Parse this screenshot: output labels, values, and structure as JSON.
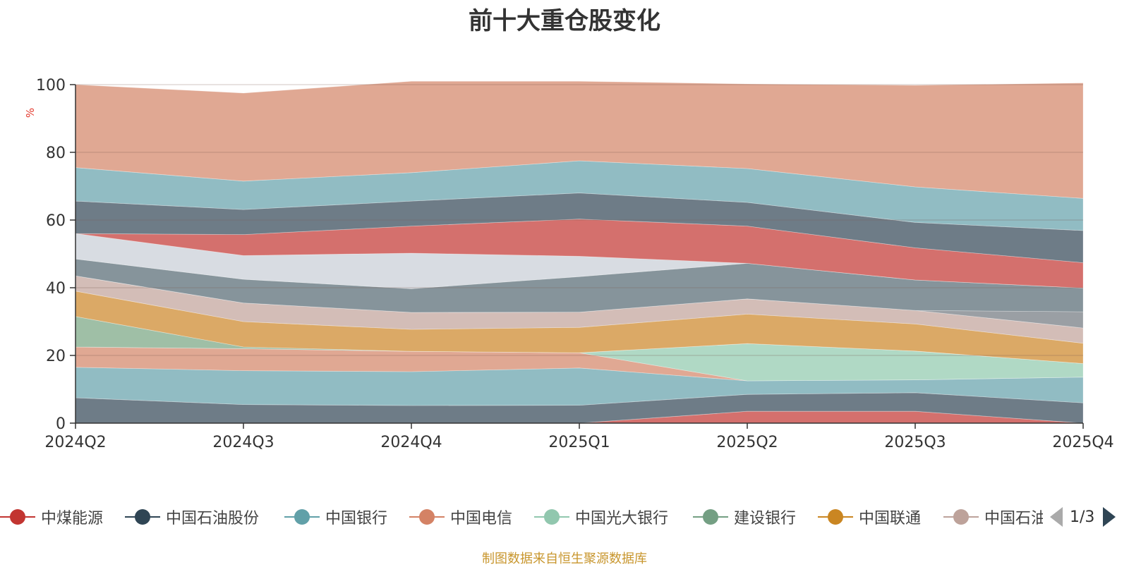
{
  "chart_data": {
    "type": "area",
    "title": "前十大重仓股变化",
    "ylabel": "%",
    "ylim": [
      0,
      100
    ],
    "yticks": [
      0,
      20,
      40,
      60,
      80,
      100
    ],
    "stacked": true,
    "grid": true,
    "legend_position": "bottom",
    "categories": [
      "2024Q2",
      "2024Q3",
      "2024Q4",
      "2025Q1",
      "2025Q2",
      "2025Q3",
      "2025Q4"
    ],
    "layers": [
      {
        "color": "#d4706d",
        "values": [
          0,
          0,
          0,
          0,
          3.5,
          3.5,
          0
        ]
      },
      {
        "color": "#6e7c87",
        "values": [
          7.5,
          5.5,
          5.2,
          5.3,
          5,
          5.5,
          6
        ]
      },
      {
        "color": "#91bcc3",
        "values": [
          9,
          10,
          10,
          11,
          4,
          3.8,
          7.6
        ]
      },
      {
        "color": "#e0a893",
        "values": [
          6,
          6.5,
          6,
          4.5,
          0,
          0,
          0
        ]
      },
      {
        "color": "#b0d9c5",
        "values": [
          0,
          0,
          0,
          0,
          11,
          8.5,
          4
        ]
      },
      {
        "color": "#9fbfa6",
        "values": [
          9,
          0.5,
          0,
          0,
          0,
          0,
          0
        ]
      },
      {
        "color": "#dba966",
        "values": [
          7.5,
          7.5,
          6.5,
          7.5,
          8.7,
          8,
          6
        ]
      },
      {
        "color": "#d3bdb7",
        "values": [
          4.5,
          5.5,
          5,
          4.5,
          4.5,
          4,
          4.5
        ]
      },
      {
        "color": "#9a9fa4",
        "values": [
          0,
          0,
          0,
          0,
          0,
          0,
          4.8
        ]
      },
      {
        "color": "#86949b",
        "values": [
          5,
          7,
          7,
          10.5,
          10.5,
          9,
          7
        ]
      },
      {
        "color": "#d8dce2",
        "values": [
          7.5,
          7,
          10.5,
          6,
          0,
          0,
          0
        ]
      },
      {
        "color": "#d4706d",
        "values": [
          0,
          6.2,
          8,
          11,
          11,
          9.5,
          7.5
        ]
      },
      {
        "color": "#6e7c87",
        "values": [
          9.6,
          7.4,
          7.4,
          7.7,
          7,
          7.5,
          9.5
        ]
      },
      {
        "color": "#91bcc3",
        "values": [
          9.9,
          8.4,
          8.4,
          9.5,
          10,
          10.5,
          9.5
        ]
      },
      {
        "color": "#e0a893",
        "values": [
          24.5,
          26,
          27,
          23.5,
          25,
          30,
          34.1
        ]
      }
    ],
    "legend": [
      {
        "name": "中煤能源",
        "color": "#c23531"
      },
      {
        "name": "中国石油股份",
        "color": "#2f4554"
      },
      {
        "name": "中国银行",
        "color": "#61a0a8"
      },
      {
        "name": "中国电信",
        "color": "#d48265"
      },
      {
        "name": "中国光大银行",
        "color": "#91c7ae"
      },
      {
        "name": "建设银行",
        "color": "#749f83"
      },
      {
        "name": "中国联通",
        "color": "#ca8622"
      },
      {
        "name": "中国石油",
        "color": "#bda29a"
      }
    ]
  },
  "legend_pager": {
    "page_text": "1/3"
  },
  "source_note": "制图数据来自恒生聚源数据库"
}
